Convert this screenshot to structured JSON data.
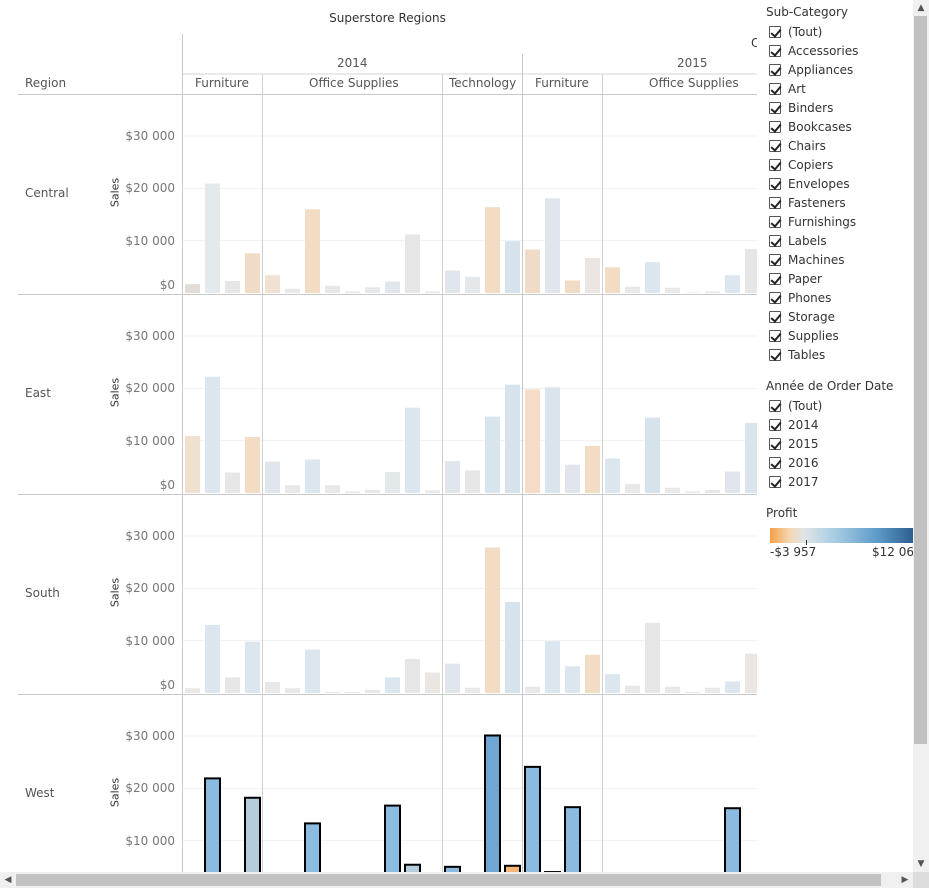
{
  "title": "Superstore Regions",
  "header": {
    "region_label": "Region",
    "year_2014": "2014",
    "year_2015": "2015",
    "cut_letter": "O",
    "categories": [
      "Furniture",
      "Office Supplies",
      "Technology",
      "Furniture",
      "Office Supplies"
    ]
  },
  "measure_label": "Sales",
  "ticks": [
    "$30 000",
    "$20 000",
    "$10 000",
    "$0"
  ],
  "regions": [
    {
      "name": "Central",
      "tick_labels": [
        "$30 000",
        "$20 000",
        "$10 000",
        "$0"
      ]
    },
    {
      "name": "East",
      "tick_labels": [
        "$30 000",
        "$20 000",
        "$10 000",
        "$0"
      ]
    },
    {
      "name": "South",
      "tick_labels": [
        "$30 000",
        "$20 000",
        "$10 000",
        "$0"
      ]
    },
    {
      "name": "West",
      "tick_labels": [
        "$30 000",
        "$20 000",
        "$10 000"
      ]
    }
  ],
  "chart_data": {
    "type": "bar",
    "title": "Superstore Regions",
    "ylabel": "Sales",
    "ylim": [
      0,
      35000
    ],
    "columns": [
      {
        "year": "2014",
        "category": "Furniture",
        "subcategories": [
          "Bookcases",
          "Chairs",
          "Furnishings",
          "Tables"
        ]
      },
      {
        "year": "2014",
        "category": "Office Supplies",
        "subcategories": [
          "Appliances",
          "Art",
          "Binders",
          "Envelopes",
          "Fasteners",
          "Labels",
          "Paper",
          "Storage",
          "Supplies"
        ]
      },
      {
        "year": "2014",
        "category": "Technology",
        "subcategories": [
          "Accessories",
          "Copiers",
          "Machines",
          "Phones"
        ]
      },
      {
        "year": "2015",
        "category": "Furniture",
        "subcategories": [
          "Bookcases",
          "Chairs",
          "Furnishings",
          "Tables"
        ]
      },
      {
        "year": "2015",
        "category": "Office Supplies",
        "subcategories": [
          "Appliances",
          "Art",
          "Binders",
          "Envelopes",
          "Fasteners",
          "Labels",
          "Paper",
          "Storage"
        ]
      }
    ],
    "series": [
      {
        "region": "Central",
        "highlighted": false,
        "values": [
          1700,
          20900,
          2300,
          7600,
          3400,
          800,
          16000,
          1400,
          300,
          1100,
          2200,
          11200,
          300,
          4300,
          3100,
          16400,
          9900,
          8300,
          18100,
          2400,
          6700,
          4900,
          1200,
          5900,
          1000,
          100,
          300,
          3400,
          8400
        ],
        "colors": [
          "#e3dcd6",
          "#e4e9ed",
          "#e6e6e6",
          "#f0dcc6",
          "#f0e1d2",
          "#e8e8e8",
          "#f2dcc4",
          "#e5e7e9",
          "#e8e8e8",
          "#e4e8eb",
          "#e0e6eb",
          "#e6e6e6",
          "#e8e8e8",
          "#e0e6eb",
          "#e4e8eb",
          "#f2dcc4",
          "#d6e2ec",
          "#f0dcc6",
          "#e0e6eb",
          "#f0dcc6",
          "#ebe6e1",
          "#f2dcc4",
          "#e8e8e8",
          "#dce6ef",
          "#e8e8e8",
          "#e8e8e8",
          "#e8e8e8",
          "#dce6ef",
          "#e6e6e6"
        ]
      },
      {
        "region": "East",
        "highlighted": false,
        "values": [
          10900,
          22200,
          3900,
          10700,
          6000,
          1500,
          6400,
          1500,
          300,
          600,
          4000,
          16300,
          500,
          6100,
          4300,
          14600,
          20700,
          19800,
          20200,
          5400,
          9000,
          6600,
          1700,
          14400,
          1000,
          300,
          600,
          4100,
          13400
        ],
        "colors": [
          "#f0e0d0",
          "#dce6ef",
          "#e6e6e6",
          "#f2dcc4",
          "#dfe6ec",
          "#e8e8e8",
          "#dce6ef",
          "#e8e8e8",
          "#e8e8e8",
          "#e8e8e8",
          "#e3e8eb",
          "#dce6ef",
          "#e8e8e8",
          "#e0e6eb",
          "#e6e6e6",
          "#d8e4ee",
          "#d6e2ec",
          "#f4dcc6",
          "#dae4ed",
          "#e0e6eb",
          "#f2dcc4",
          "#dce6ef",
          "#e8e8e8",
          "#d6e2ec",
          "#e8e8e8",
          "#e8e8e8",
          "#e8e8e8",
          "#e0e6eb",
          "#dae4ed"
        ]
      },
      {
        "region": "South",
        "highlighted": false,
        "values": [
          900,
          13000,
          3000,
          9800,
          2100,
          900,
          8300,
          200,
          200,
          600,
          3000,
          6500,
          3900,
          5600,
          1000,
          27800,
          17400,
          1200,
          9900,
          5100,
          7300,
          3600,
          1400,
          13400,
          1200,
          200,
          1000,
          2200,
          7500
        ],
        "colors": [
          "#e8e8e8",
          "#dce6ef",
          "#e6e6e6",
          "#dce6ef",
          "#e8e8e8",
          "#e8e8e8",
          "#dce6ef",
          "#e8e8e8",
          "#e8e8e8",
          "#e8e8e8",
          "#dce6ef",
          "#e6e6e6",
          "#ebe6e1",
          "#e0e6eb",
          "#e8e8e8",
          "#f2dcc4",
          "#d6e2ec",
          "#e8e8e8",
          "#dce6ef",
          "#dce6ef",
          "#f2dcc4",
          "#dce6ef",
          "#e8e8e8",
          "#e6e6e6",
          "#e8e8e8",
          "#e8e8e8",
          "#e8e8e8",
          "#dce6ef",
          "#ebe6e1"
        ]
      },
      {
        "region": "West",
        "highlighted": true,
        "values": [
          2900,
          21900,
          900,
          18200,
          0,
          0,
          13300,
          0,
          0,
          1300,
          16700,
          5400,
          0,
          5000,
          0,
          30100,
          5200,
          24100,
          4000,
          16400,
          3800,
          0,
          0,
          0,
          0,
          0,
          1400,
          16200,
          0
        ],
        "colors": [
          "#c8c8c2",
          "#8bbbe0",
          "#a0c6e0",
          "#b4cddc",
          "#dddddd",
          "#dddddd",
          "#8bbbe0",
          "#dddddd",
          "#dddddd",
          "#8bbbe0",
          "#8bbbe0",
          "#b4cddc",
          "#dddddd",
          "#8bbbe0",
          "#dddddd",
          "#6fa6d3",
          "#f7b77a",
          "#8bbbe0",
          "#8bbbe0",
          "#8bbbe0",
          "#8bbbe0",
          "#dddddd",
          "#dddddd",
          "#dddddd",
          "#dddddd",
          "#dddddd",
          "#8bbbe0",
          "#8bbbe0",
          "#dddddd"
        ]
      }
    ]
  },
  "filters": {
    "subcategory": {
      "title": "Sub-Category",
      "items": [
        "(Tout)",
        "Accessories",
        "Appliances",
        "Art",
        "Binders",
        "Bookcases",
        "Chairs",
        "Copiers",
        "Envelopes",
        "Fasteners",
        "Furnishings",
        "Labels",
        "Machines",
        "Paper",
        "Phones",
        "Storage",
        "Supplies",
        "Tables"
      ]
    },
    "year": {
      "title": "Année de Order Date",
      "items": [
        "(Tout)",
        "2014",
        "2015",
        "2016",
        "2017"
      ]
    },
    "profit": {
      "title": "Profit",
      "min_label": "-$3 957",
      "max_label": "$12 06"
    }
  },
  "scrollbars": {
    "up_icon": "▲",
    "down_icon": "▼",
    "left_icon": "◀",
    "right_icon": "▶"
  }
}
